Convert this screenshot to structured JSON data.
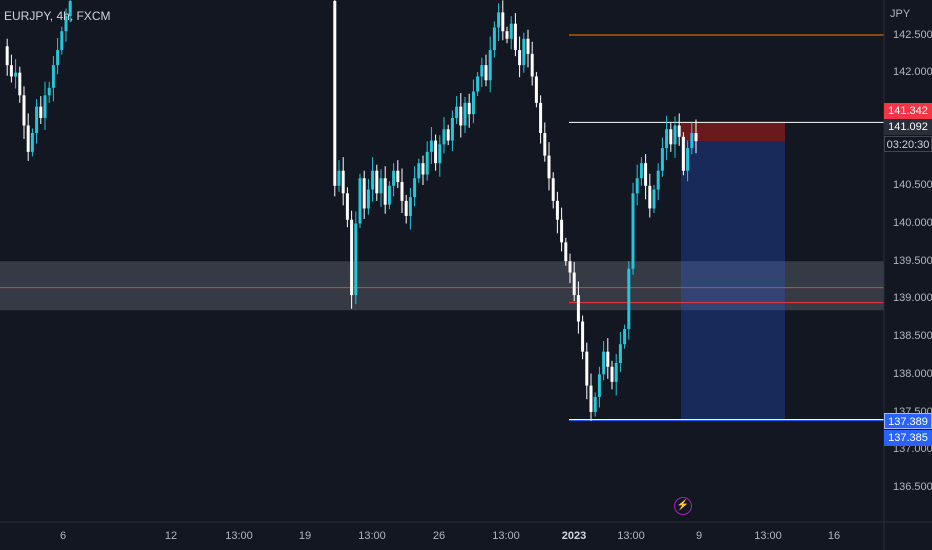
{
  "header": {
    "symbol_line": "EURJPY, 4h, FXCM",
    "currency": "JPY"
  },
  "badges": {
    "stop_price": "141.342",
    "last_price": "141.092",
    "countdown": "03:20:30",
    "target_price": "137.389",
    "low_price": "137.385"
  },
  "colors": {
    "background": "#131722",
    "bull": "#26c6da",
    "bear": "#ffffff",
    "zone": "#787b86",
    "stop_zone": "#b71c1c",
    "target_zone": "#2962ff",
    "orange_line": "#f57c00",
    "red_line": "#f23645",
    "stop_badge": "#f23645",
    "last_badge": "#2a2e39",
    "target_badge": "#2962ff"
  },
  "chart_data": {
    "type": "candlestick",
    "symbol": "EURJPY",
    "timeframe": "4h",
    "exchange": "FXCM",
    "y_ticks": [
      "142.500",
      "142.000",
      "141.500",
      "141.000",
      "140.500",
      "140.000",
      "139.500",
      "139.000",
      "138.500",
      "138.000",
      "137.500",
      "137.000",
      "136.500"
    ],
    "x_ticks": [
      {
        "label": "6",
        "bold": false
      },
      {
        "label": "12",
        "bold": false
      },
      {
        "label": "13:00",
        "bold": false
      },
      {
        "label": "19",
        "bold": false
      },
      {
        "label": "13:00",
        "bold": false
      },
      {
        "label": "26",
        "bold": false
      },
      {
        "label": "13:00",
        "bold": false
      },
      {
        "label": "2023",
        "bold": true
      },
      {
        "label": "13:00",
        "bold": false
      },
      {
        "label": "9",
        "bold": false
      },
      {
        "label": "13:00",
        "bold": false
      },
      {
        "label": "16",
        "bold": false
      }
    ],
    "ylim": [
      136.2,
      142.95
    ],
    "segments": [
      {
        "name": "early-dec",
        "start_index": 0,
        "closes": [
          142.35,
          142.1,
          141.95,
          142.0,
          141.7,
          141.3,
          140.95,
          141.2,
          141.55,
          141.4,
          141.7,
          141.8,
          142.1,
          142.3,
          142.55,
          142.75,
          142.95
        ]
      },
      {
        "name": "mid-dec",
        "start_index": 78,
        "closes": [
          142.95,
          140.5,
          140.7,
          140.4,
          140.05,
          139.05,
          140.0,
          140.6,
          140.2,
          140.45,
          140.7,
          140.4,
          140.6,
          140.25,
          140.5,
          140.7,
          140.55,
          140.3,
          140.1,
          140.35,
          140.6,
          140.8,
          140.65,
          140.95,
          141.1,
          140.8,
          141.05,
          141.25,
          141.1,
          141.4,
          141.55,
          141.3,
          141.6,
          141.45,
          141.75,
          141.95,
          142.1,
          141.9,
          142.3,
          142.6,
          142.8,
          142.55,
          142.45,
          142.65,
          142.3,
          142.1,
          142.45,
          142.25,
          141.95,
          141.6,
          141.2,
          140.9,
          140.6,
          140.3,
          140.05,
          139.75,
          139.5,
          139.35,
          139.05,
          138.7,
          138.3,
          137.85,
          137.5,
          137.7,
          138.0,
          138.3,
          138.1,
          137.9,
          138.15,
          138.4,
          138.6,
          139.4,
          140.4,
          140.6,
          140.8,
          140.5,
          140.2,
          140.45,
          140.7,
          141.0,
          141.25,
          141.05,
          141.3,
          141.15,
          140.7,
          141.0,
          141.2,
          141.092
        ]
      }
    ],
    "horizontal_levels": [
      {
        "value": 142.5,
        "color": "orange"
      },
      {
        "value": 141.342,
        "color": "white"
      },
      {
        "value": 139.15,
        "color": "red"
      },
      {
        "value": 138.95,
        "color": "red"
      },
      {
        "value": 137.4,
        "color": "white"
      },
      {
        "value": 137.385,
        "color": "blue"
      }
    ],
    "support_zone": {
      "from": 138.85,
      "to": 139.5
    },
    "position": {
      "type": "short",
      "entry": 141.092,
      "stop": 141.342,
      "target": 137.389
    },
    "last_price": 141.092,
    "candle_count": 182
  }
}
